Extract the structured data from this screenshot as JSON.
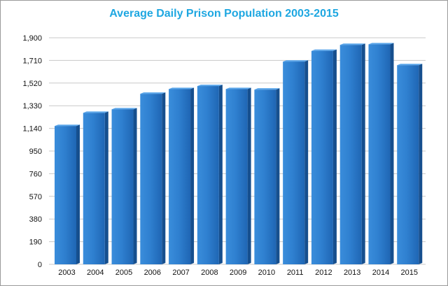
{
  "chart_data": {
    "type": "bar",
    "title": "Average Daily Prison Population 2003-2015",
    "xlabel": "",
    "ylabel": "",
    "categories": [
      "2003",
      "2004",
      "2005",
      "2006",
      "2007",
      "2008",
      "2009",
      "2010",
      "2011",
      "2012",
      "2013",
      "2014",
      "2015"
    ],
    "values": [
      1160,
      1270,
      1300,
      1430,
      1470,
      1495,
      1470,
      1465,
      1700,
      1790,
      1840,
      1845,
      1670
    ],
    "ylim": [
      0,
      1900
    ],
    "yticks": [
      0,
      190,
      380,
      570,
      760,
      950,
      1140,
      1330,
      1520,
      1710,
      1900
    ],
    "ytick_labels": [
      "0",
      "190",
      "380",
      "570",
      "760",
      "950",
      "1,140",
      "1,330",
      "1,520",
      "1,710",
      "1,900"
    ],
    "grid": true,
    "legend": "none",
    "bar_color": "#2f80d0",
    "title_color": "#1ea7e1"
  }
}
